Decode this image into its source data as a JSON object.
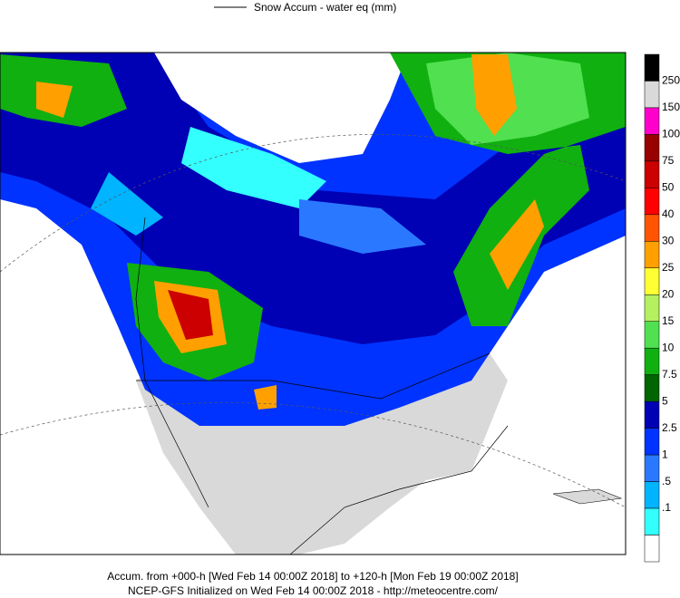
{
  "legend_title": "Snow Accum - water eq (mm)",
  "colorbar": {
    "labels": [
      "250",
      "150",
      "100",
      "75",
      "50",
      "40",
      "30",
      "25",
      "20",
      "15",
      "10",
      "7.5",
      "5",
      "2.5",
      "1",
      ".5",
      ".1"
    ],
    "colors": [
      "#000000",
      "#d9d9d9",
      "#ff00cc",
      "#990000",
      "#cc0000",
      "#ff0000",
      "#ff5500",
      "#ffa000",
      "#ffff33",
      "#b4f060",
      "#50e050",
      "#10b010",
      "#006600",
      "#0000b4",
      "#0033ff",
      "#2a78ff",
      "#00b4ff",
      "#33ffff",
      "#ffffff"
    ]
  },
  "footer": {
    "line1": "Accum. from +000-h [Wed Feb 14 00:00Z 2018] to +120-h [Mon Feb 19 00:00Z 2018]",
    "line2": "NCEP-GFS Initialized on Wed Feb 14 00:00Z 2018 - http://meteocentre.com/"
  }
}
